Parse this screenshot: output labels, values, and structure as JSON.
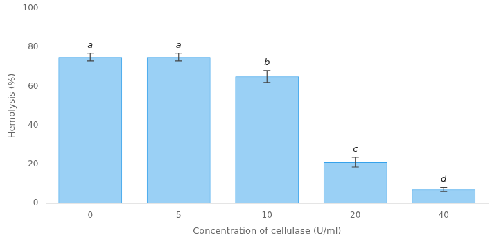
{
  "chart_data": {
    "type": "bar",
    "categories": [
      "0",
      "5",
      "10",
      "20",
      "40"
    ],
    "values": [
      75.0,
      75.0,
      65.0,
      21.0,
      7.0
    ],
    "errors": [
      2.0,
      2.0,
      3.0,
      2.5,
      1.0
    ],
    "annotations": [
      "a",
      "a",
      "b",
      "c",
      "d"
    ],
    "xlabel": "Concentration of cellulase (U/ml)",
    "ylabel": "Hemolysis (%)",
    "ylim": [
      0,
      100
    ],
    "yticks": [
      0,
      20,
      40,
      60,
      80,
      100
    ],
    "grid": false
  }
}
